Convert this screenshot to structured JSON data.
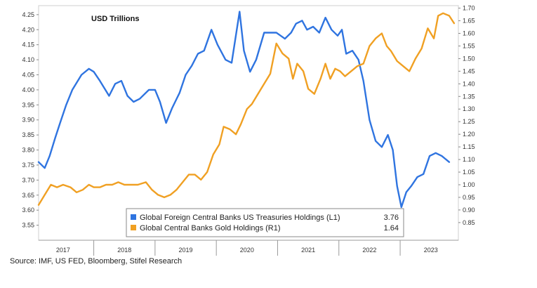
{
  "chart_data": {
    "type": "line",
    "title": "USD Trillions",
    "source": "Source: IMF, US FED, Bloomberg, Stifel Research",
    "left_axis": {
      "range": [
        3.5,
        4.28
      ],
      "ticks": [
        "4.25",
        "4.20",
        "4.15",
        "4.10",
        "4.05",
        "4.00",
        "3.95",
        "3.90",
        "3.85",
        "3.80",
        "3.75",
        "3.70",
        "3.65",
        "3.60",
        "3.55"
      ]
    },
    "right_axis": {
      "range": [
        0.78,
        1.71
      ],
      "ticks": [
        "1.70",
        "1.65",
        "1.60",
        "1.55",
        "1.50",
        "1.45",
        "1.40",
        "1.35",
        "1.30",
        "1.25",
        "1.20",
        "1.15",
        "1.10",
        "1.05",
        "1.00",
        "0.95",
        "0.90",
        "0.85"
      ]
    },
    "x_range": [
      2016.6,
      2023.45
    ],
    "year_labels": [
      {
        "label": "2017",
        "x": 2017.0
      },
      {
        "label": "2018",
        "x": 2018.0
      },
      {
        "label": "2019",
        "x": 2019.0
      },
      {
        "label": "2020",
        "x": 2020.0
      },
      {
        "label": "2021",
        "x": 2021.0
      },
      {
        "label": "2022",
        "x": 2022.0
      },
      {
        "label": "2023",
        "x": 2023.0
      }
    ],
    "year_dividers": [
      2017.5,
      2018.5,
      2019.5,
      2020.5,
      2021.5,
      2022.5
    ],
    "series": [
      {
        "name": "Global Foreign Central Banks US Treasuries Holdings (L1)",
        "axis": "left",
        "color": "#2f74e0",
        "last_value": "3.76",
        "points": [
          [
            2016.6,
            3.76
          ],
          [
            2016.7,
            3.74
          ],
          [
            2016.78,
            3.78
          ],
          [
            2016.87,
            3.84
          ],
          [
            2016.95,
            3.89
          ],
          [
            2017.05,
            3.95
          ],
          [
            2017.15,
            4.0
          ],
          [
            2017.3,
            4.05
          ],
          [
            2017.42,
            4.07
          ],
          [
            2017.5,
            4.06
          ],
          [
            2017.6,
            4.03
          ],
          [
            2017.75,
            3.98
          ],
          [
            2017.85,
            4.02
          ],
          [
            2017.95,
            4.03
          ],
          [
            2018.05,
            3.98
          ],
          [
            2018.15,
            3.96
          ],
          [
            2018.25,
            3.97
          ],
          [
            2018.4,
            4.0
          ],
          [
            2018.5,
            4.0
          ],
          [
            2018.58,
            3.96
          ],
          [
            2018.68,
            3.89
          ],
          [
            2018.78,
            3.94
          ],
          [
            2018.9,
            3.99
          ],
          [
            2019.0,
            4.05
          ],
          [
            2019.1,
            4.08
          ],
          [
            2019.2,
            4.12
          ],
          [
            2019.3,
            4.13
          ],
          [
            2019.42,
            4.2
          ],
          [
            2019.52,
            4.15
          ],
          [
            2019.65,
            4.1
          ],
          [
            2019.75,
            4.09
          ],
          [
            2019.88,
            4.26
          ],
          [
            2019.95,
            4.13
          ],
          [
            2020.05,
            4.06
          ],
          [
            2020.15,
            4.1
          ],
          [
            2020.28,
            4.19
          ],
          [
            2020.38,
            4.19
          ],
          [
            2020.48,
            4.19
          ],
          [
            2020.55,
            4.18
          ],
          [
            2020.62,
            4.17
          ],
          [
            2020.72,
            4.19
          ],
          [
            2020.8,
            4.22
          ],
          [
            2020.9,
            4.23
          ],
          [
            2020.98,
            4.2
          ],
          [
            2021.08,
            4.21
          ],
          [
            2021.18,
            4.19
          ],
          [
            2021.28,
            4.24
          ],
          [
            2021.38,
            4.2
          ],
          [
            2021.48,
            4.18
          ],
          [
            2021.55,
            4.2
          ],
          [
            2021.62,
            4.12
          ],
          [
            2021.72,
            4.13
          ],
          [
            2021.82,
            4.1
          ],
          [
            2021.9,
            4.03
          ],
          [
            2022.0,
            3.9
          ],
          [
            2022.1,
            3.83
          ],
          [
            2022.2,
            3.81
          ],
          [
            2022.3,
            3.85
          ],
          [
            2022.38,
            3.8
          ],
          [
            2022.45,
            3.68
          ],
          [
            2022.52,
            3.61
          ],
          [
            2022.6,
            3.66
          ],
          [
            2022.68,
            3.68
          ],
          [
            2022.78,
            3.71
          ],
          [
            2022.88,
            3.72
          ],
          [
            2022.98,
            3.78
          ],
          [
            2023.08,
            3.79
          ],
          [
            2023.18,
            3.78
          ],
          [
            2023.3,
            3.76
          ]
        ]
      },
      {
        "name": "Global Central Banks Gold Holdings (R1)",
        "axis": "right",
        "color": "#f0a023",
        "last_value": "1.64",
        "points": [
          [
            2016.6,
            0.92
          ],
          [
            2016.7,
            0.96
          ],
          [
            2016.8,
            1.0
          ],
          [
            2016.9,
            0.99
          ],
          [
            2017.0,
            1.0
          ],
          [
            2017.12,
            0.99
          ],
          [
            2017.22,
            0.97
          ],
          [
            2017.32,
            0.98
          ],
          [
            2017.42,
            1.0
          ],
          [
            2017.5,
            0.99
          ],
          [
            2017.6,
            0.99
          ],
          [
            2017.7,
            1.0
          ],
          [
            2017.8,
            1.0
          ],
          [
            2017.9,
            1.01
          ],
          [
            2018.0,
            1.0
          ],
          [
            2018.12,
            1.0
          ],
          [
            2018.22,
            1.0
          ],
          [
            2018.35,
            1.01
          ],
          [
            2018.45,
            0.98
          ],
          [
            2018.55,
            0.96
          ],
          [
            2018.65,
            0.95
          ],
          [
            2018.75,
            0.96
          ],
          [
            2018.85,
            0.98
          ],
          [
            2018.95,
            1.01
          ],
          [
            2019.05,
            1.04
          ],
          [
            2019.15,
            1.04
          ],
          [
            2019.25,
            1.02
          ],
          [
            2019.35,
            1.05
          ],
          [
            2019.45,
            1.12
          ],
          [
            2019.55,
            1.16
          ],
          [
            2019.62,
            1.23
          ],
          [
            2019.72,
            1.22
          ],
          [
            2019.82,
            1.2
          ],
          [
            2019.9,
            1.24
          ],
          [
            2020.0,
            1.3
          ],
          [
            2020.08,
            1.32
          ],
          [
            2020.18,
            1.36
          ],
          [
            2020.28,
            1.4
          ],
          [
            2020.38,
            1.44
          ],
          [
            2020.48,
            1.56
          ],
          [
            2020.58,
            1.52
          ],
          [
            2020.68,
            1.5
          ],
          [
            2020.75,
            1.42
          ],
          [
            2020.82,
            1.48
          ],
          [
            2020.92,
            1.45
          ],
          [
            2021.0,
            1.38
          ],
          [
            2021.1,
            1.36
          ],
          [
            2021.2,
            1.42
          ],
          [
            2021.28,
            1.48
          ],
          [
            2021.36,
            1.42
          ],
          [
            2021.44,
            1.46
          ],
          [
            2021.52,
            1.45
          ],
          [
            2021.6,
            1.43
          ],
          [
            2021.7,
            1.45
          ],
          [
            2021.8,
            1.47
          ],
          [
            2021.9,
            1.48
          ],
          [
            2022.0,
            1.55
          ],
          [
            2022.1,
            1.58
          ],
          [
            2022.2,
            1.6
          ],
          [
            2022.28,
            1.55
          ],
          [
            2022.35,
            1.53
          ],
          [
            2022.45,
            1.49
          ],
          [
            2022.55,
            1.47
          ],
          [
            2022.65,
            1.45
          ],
          [
            2022.75,
            1.5
          ],
          [
            2022.85,
            1.54
          ],
          [
            2022.95,
            1.62
          ],
          [
            2023.05,
            1.58
          ],
          [
            2023.12,
            1.67
          ],
          [
            2023.2,
            1.68
          ],
          [
            2023.3,
            1.67
          ],
          [
            2023.38,
            1.64
          ]
        ]
      }
    ]
  }
}
